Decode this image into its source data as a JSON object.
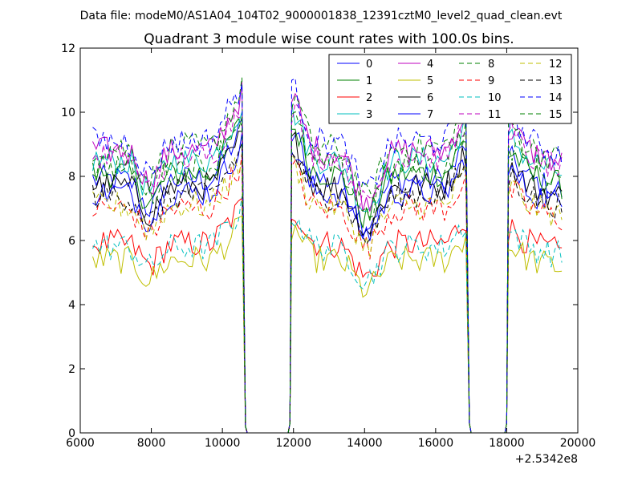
{
  "header": {
    "data_file": "Data file: modeM0/AS1A04_104T02_9000001838_12391cztM0_level2_quad_clean.evt"
  },
  "chart_data": {
    "type": "line",
    "title": "Quadrant 3 module wise count rates with 100.0s bins.",
    "xlabel": "",
    "ylabel": "",
    "x_offset_label": "+2.5342e8",
    "xlim": [
      6000,
      20000
    ],
    "ylim": [
      0,
      12
    ],
    "xticks": [
      6000,
      8000,
      10000,
      12000,
      14000,
      16000,
      18000,
      20000
    ],
    "yticks": [
      0,
      2,
      4,
      6,
      8,
      10,
      12
    ],
    "legend_position": "top-right",
    "legend_columns": 4,
    "segments": [
      [
        6350,
        10550
      ],
      [
        11950,
        16900
      ],
      [
        18050,
        19600
      ]
    ],
    "gaps": [
      [
        10550,
        11950
      ],
      [
        16900,
        18050
      ]
    ],
    "bin_seconds": 100,
    "series": [
      {
        "name": "0",
        "color": "#0000ff",
        "dashed": false,
        "level": 7.9
      },
      {
        "name": "1",
        "color": "#008000",
        "dashed": false,
        "level": 8.1
      },
      {
        "name": "2",
        "color": "#ff0000",
        "dashed": false,
        "level": 5.9
      },
      {
        "name": "3",
        "color": "#00bfbf",
        "dashed": false,
        "level": 8.5
      },
      {
        "name": "4",
        "color": "#bf00bf",
        "dashed": false,
        "level": 8.8
      },
      {
        "name": "5",
        "color": "#bfbf00",
        "dashed": false,
        "level": 5.4
      },
      {
        "name": "6",
        "color": "#000000",
        "dashed": false,
        "level": 7.7
      },
      {
        "name": "7",
        "color": "#0000ff",
        "dashed": false,
        "level": 7.5
      },
      {
        "name": "8",
        "color": "#008000",
        "dashed": true,
        "level": 8.9
      },
      {
        "name": "9",
        "color": "#ff0000",
        "dashed": true,
        "level": 7.0
      },
      {
        "name": "10",
        "color": "#00bfbf",
        "dashed": true,
        "level": 5.8
      },
      {
        "name": "11",
        "color": "#bf00bf",
        "dashed": true,
        "level": 8.6
      },
      {
        "name": "12",
        "color": "#bfbf00",
        "dashed": true,
        "level": 7.1
      },
      {
        "name": "13",
        "color": "#000000",
        "dashed": true,
        "level": 7.4
      },
      {
        "name": "14",
        "color": "#0000ff",
        "dashed": true,
        "level": 9.1
      },
      {
        "name": "15",
        "color": "#008000",
        "dashed": true,
        "level": 8.3
      }
    ]
  }
}
